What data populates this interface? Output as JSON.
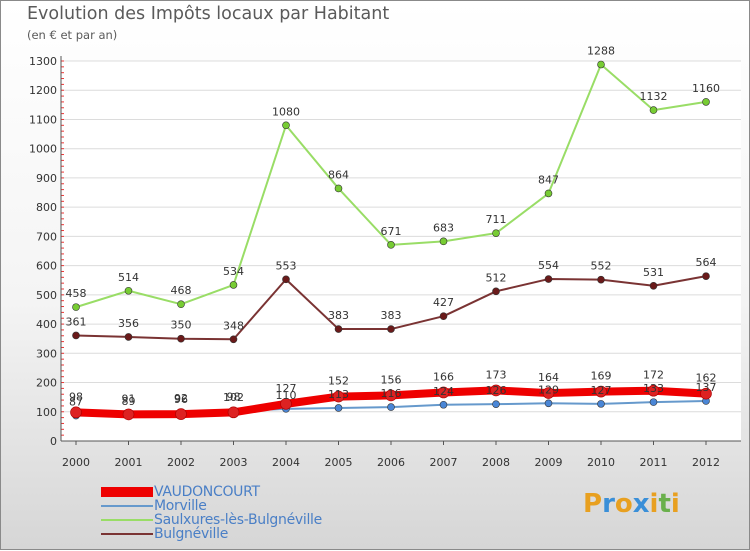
{
  "title": "Evolution des Impôts locaux par Habitant",
  "subtitle": "(en € et par an)",
  "logo": {
    "text": "Proxiti",
    "letters": [
      "P",
      "r",
      "o",
      "x",
      "i",
      "t",
      "i"
    ],
    "colors": [
      "#e8a020",
      "#3a8fd8",
      "#e8a020",
      "#3a8fd8",
      "#e8a020",
      "#6ab04c",
      "#e8a020"
    ]
  },
  "chart_data": {
    "type": "line",
    "title": "Evolution des Impôts locaux par Habitant",
    "subtitle": "(en € et par an)",
    "xlabel": "",
    "ylabel": "",
    "categories": [
      "2000",
      "2001",
      "2002",
      "2003",
      "2004",
      "2005",
      "2006",
      "2007",
      "2008",
      "2009",
      "2010",
      "2011",
      "2012"
    ],
    "yticks": [
      "0",
      "100",
      "200",
      "300",
      "400",
      "500",
      "600",
      "700",
      "800",
      "900",
      "1000",
      "1100",
      "1200",
      "1300"
    ],
    "ylim": [
      0,
      1300
    ],
    "legend_position": "bottom-left",
    "series": [
      {
        "name": "VAUDONCOURT",
        "color": "#ee0000",
        "marker": "#dd2222",
        "values": [
          98,
          91,
          92,
          98,
          127,
          152,
          156,
          166,
          173,
          164,
          169,
          172,
          162
        ],
        "labels": [
          "98",
          "91",
          "92",
          "98",
          "127",
          "152",
          "156",
          "166",
          "173",
          "164",
          "169",
          "172",
          "162"
        ]
      },
      {
        "name": "Morville",
        "color": "#6699cc",
        "marker": "#4a86d6",
        "values": [
          87,
          89,
          96,
          102,
          110,
          113,
          116,
          124,
          126,
          129,
          127,
          133,
          137
        ],
        "labels": [
          "87",
          "89",
          "96",
          "102",
          "110",
          "113",
          "116",
          "124",
          "126",
          "129",
          "127",
          "133",
          "137"
        ]
      },
      {
        "name": "Saulxures-lès-Bulgnéville",
        "color": "#99dd66",
        "marker": "#77cc33",
        "values": [
          458,
          514,
          468,
          534,
          1080,
          864,
          671,
          683,
          711,
          847,
          1288,
          1132,
          1160
        ],
        "labels": [
          "458",
          "514",
          "468",
          "534",
          "1080",
          "864",
          "671",
          "683",
          "711",
          "847",
          "1288",
          "1132",
          "1160"
        ]
      },
      {
        "name": "Bulgnéville",
        "color": "#7a3333",
        "marker": "#6a1a1a",
        "values": [
          361,
          356,
          350,
          348,
          553,
          383,
          383,
          427,
          512,
          554,
          552,
          531,
          564
        ],
        "labels": [
          "361",
          "356",
          "350",
          "348",
          "553",
          "383",
          "383",
          "427",
          "512",
          "554",
          "552",
          "531",
          "564"
        ]
      }
    ]
  },
  "legend": [
    {
      "name": "VAUDONCOURT",
      "color": "#ee0000"
    },
    {
      "name": "Morville",
      "color": "#6699cc"
    },
    {
      "name": "Saulxures-lès-Bulgnéville",
      "color": "#99dd66"
    },
    {
      "name": "Bulgnéville",
      "color": "#7a3333"
    }
  ]
}
